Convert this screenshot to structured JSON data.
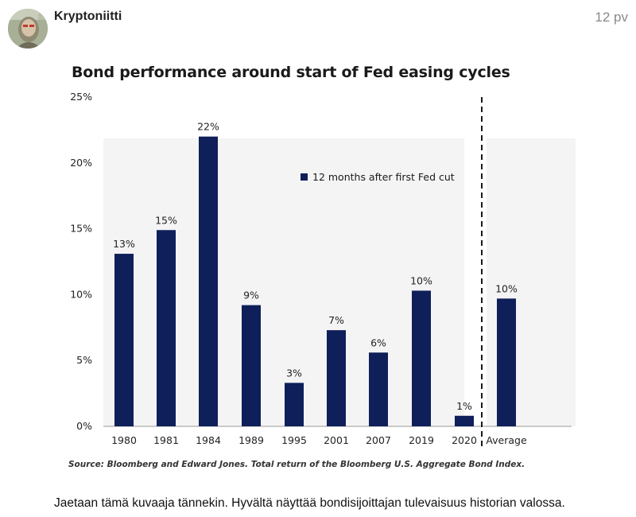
{
  "post": {
    "username": "Kryptoniitti",
    "date": "12 pv",
    "body": "Jaetaan tämä kuvaaja tännekin. Hyvältä näyttää bondisijoittajan tulevaisuus historian valossa."
  },
  "chart_data": {
    "type": "bar",
    "title": "Bond performance around start of Fed easing cycles",
    "source": "Source: Bloomberg and Edward Jones. Total return of the Bloomberg U.S. Aggregate Bond Index.",
    "categories": [
      "1980",
      "1981",
      "1984",
      "1989",
      "1995",
      "2001",
      "2007",
      "2019",
      "2020",
      "Average"
    ],
    "series": [
      {
        "name": "12 months after first Fed cut",
        "values": [
          13.1,
          14.9,
          22.0,
          9.2,
          3.3,
          7.3,
          5.6,
          10.3,
          0.8,
          9.7
        ],
        "labels": [
          "13%",
          "15%",
          "22%",
          "9%",
          "3%",
          "7%",
          "6%",
          "10%",
          "1%",
          "10%"
        ]
      }
    ],
    "ylim": [
      0,
      25
    ],
    "yticks": [
      "0%",
      "5%",
      "10%",
      "15%",
      "20%",
      "25%"
    ],
    "ytick_values": [
      0,
      5,
      10,
      15,
      20,
      25
    ],
    "xlabel": "",
    "ylabel": "",
    "legend_position": "top-right",
    "grid": false,
    "colors": {
      "bar": "#0f1f5a",
      "plot_bg": "#f4f4f4",
      "divider": "#1a1a1a"
    }
  }
}
